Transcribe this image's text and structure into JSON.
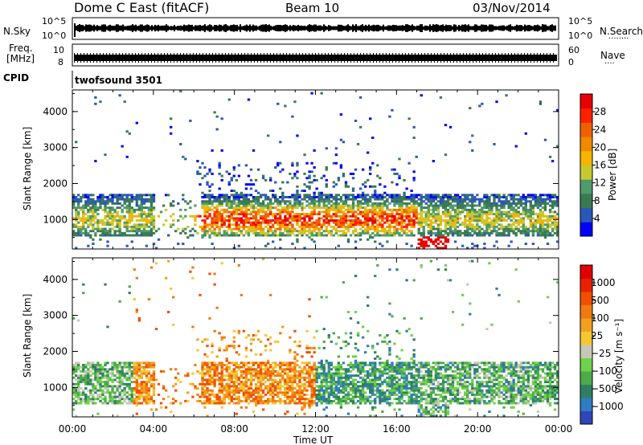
{
  "header": {
    "station": "Dome C East (fitACF)",
    "beam": "Beam 10",
    "date": "03/Nov/2014"
  },
  "noise_panel": {
    "left_label": "N.Sky",
    "right_label": "N.Search",
    "right_dots": "········",
    "ticks_left": [
      "10^5",
      "10^0"
    ],
    "ticks_right": [
      "10^5",
      "10^0"
    ]
  },
  "freq_panel": {
    "left_label_line1": "Freq.",
    "left_label_line2": "[MHz]",
    "right_label": "Nave",
    "right_dots": "····",
    "ticks_left": [
      "10",
      "8"
    ],
    "ticks_right": [
      "60",
      "0"
    ]
  },
  "cpid_panel": {
    "label": "CPID",
    "program": "twofsound 3501"
  },
  "x_axis": {
    "label": "Time UT",
    "ticks": [
      "00:00",
      "04:00",
      "08:00",
      "12:00",
      "16:00",
      "20:00",
      "00:00"
    ]
  },
  "chart_data": [
    {
      "type": "heatmap",
      "title": "",
      "quantity": "Power",
      "xlabel": "Time UT",
      "ylabel": "Slant Range [km]",
      "y_ticks": [
        1000,
        2000,
        3000,
        4000
      ],
      "ylim": [
        180,
        4600
      ],
      "xlim_hours": [
        0,
        24
      ],
      "colorbar": {
        "label": "Power [dB]",
        "ticks": [
          "4",
          "8",
          "12",
          "16",
          "20",
          "24",
          "28"
        ],
        "colors": [
          "#0000ff",
          "#2a58b8",
          "#3a7a52",
          "#4f9a6a",
          "#c8c832",
          "#f5b400",
          "#f08a00",
          "#f06000",
          "#ff2000",
          "#e80000"
        ]
      }
    },
    {
      "type": "heatmap",
      "title": "",
      "quantity": "Velocity",
      "xlabel": "Time UT",
      "ylabel": "Slant Range [km]",
      "y_ticks": [
        1000,
        2000,
        3000,
        4000
      ],
      "ylim": [
        180,
        4600
      ],
      "xlim_hours": [
        0,
        24
      ],
      "colorbar": {
        "label": "Velocity [m s⁻¹]",
        "ticks": [
          "1000",
          "500",
          "100",
          "25",
          "−25",
          "−100",
          "−500",
          "−1000"
        ],
        "colors": [
          "#3046b8",
          "#2f7cc2",
          "#2e7e62",
          "#4faa4a",
          "#6ed24a",
          "#c8c8b8",
          "#f5c832",
          "#f3a020",
          "#f07a10",
          "#f05000",
          "#e82000",
          "#e00000"
        ]
      }
    }
  ]
}
